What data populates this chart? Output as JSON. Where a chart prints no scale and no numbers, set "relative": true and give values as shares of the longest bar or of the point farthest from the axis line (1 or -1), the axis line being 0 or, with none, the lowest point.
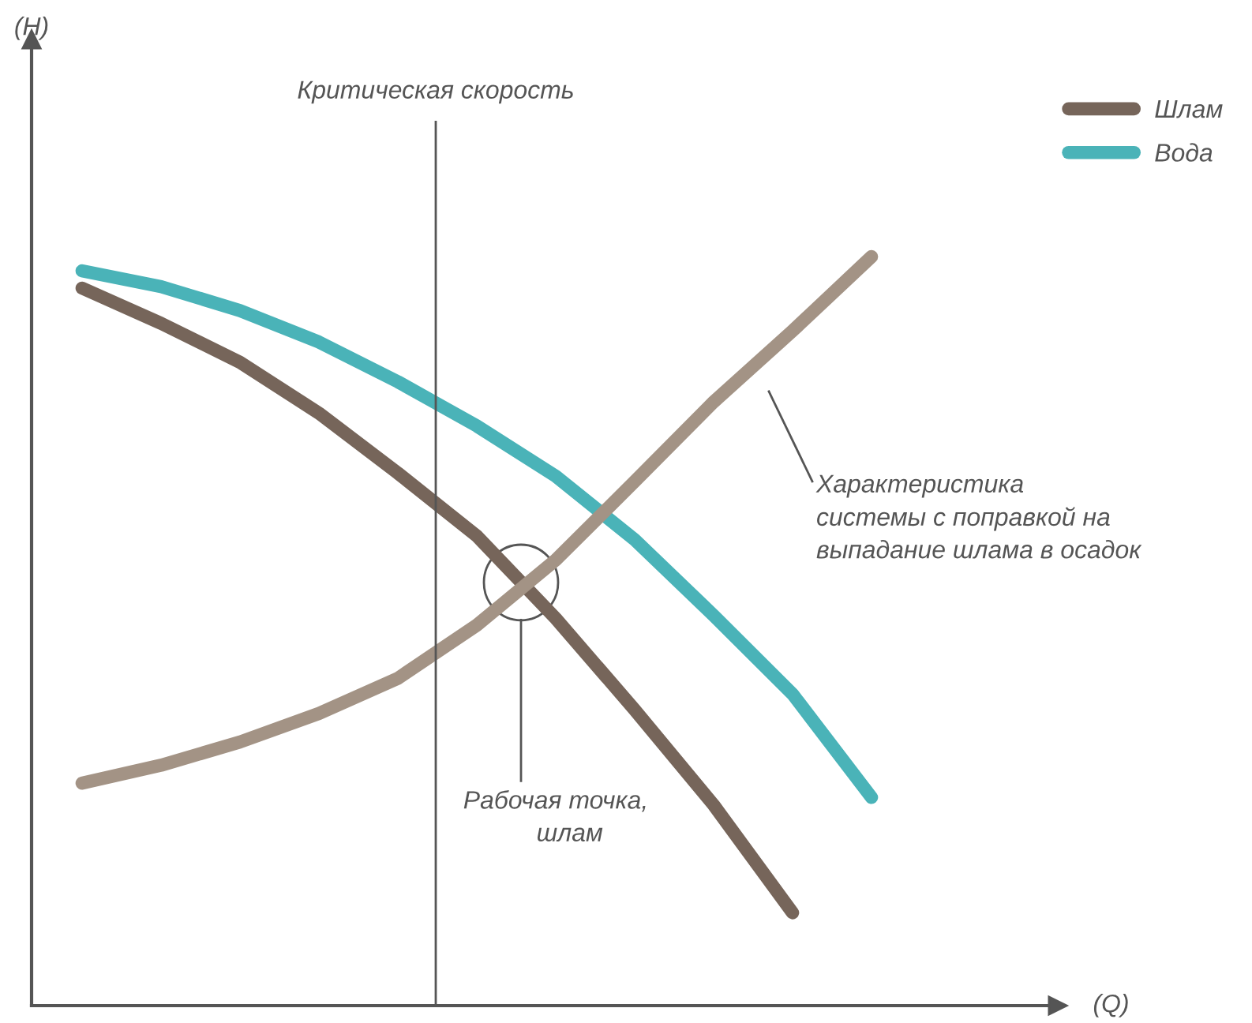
{
  "chart_data": {
    "type": "line",
    "relative": true,
    "categories": [
      null,
      null,
      null,
      null,
      null,
      null,
      null,
      null,
      null,
      null,
      null
    ],
    "series": [
      {
        "name": "Шлам",
        "color": "#76655a",
        "values": [
          0.958,
          0.911,
          0.859,
          0.791,
          0.711,
          0.627,
          0.517,
          0.395,
          0.268,
          0.124,
          null
        ]
      },
      {
        "name": "Вода",
        "color": "#4ab3b8",
        "values": [
          0.981,
          0.96,
          0.928,
          0.886,
          0.833,
          0.774,
          0.707,
          0.622,
          0.521,
          0.416,
          0.278
        ]
      },
      {
        "color": "#a39385",
        "values": [
          0.297,
          0.321,
          0.352,
          0.39,
          0.437,
          0.508,
          0.595,
          0.7,
          0.806,
          0.901,
          1.0
        ]
      }
    ],
    "annotations": [
      "(H)",
      "(Q)",
      "Критическая скорость",
      "Характеристика\nсистемы с поправкой на\nвыпадание шлама в осадок",
      "Рабочая точка,\n    шлам"
    ],
    "legend": "top right",
    "marker": "none",
    "line_style": "solid"
  }
}
